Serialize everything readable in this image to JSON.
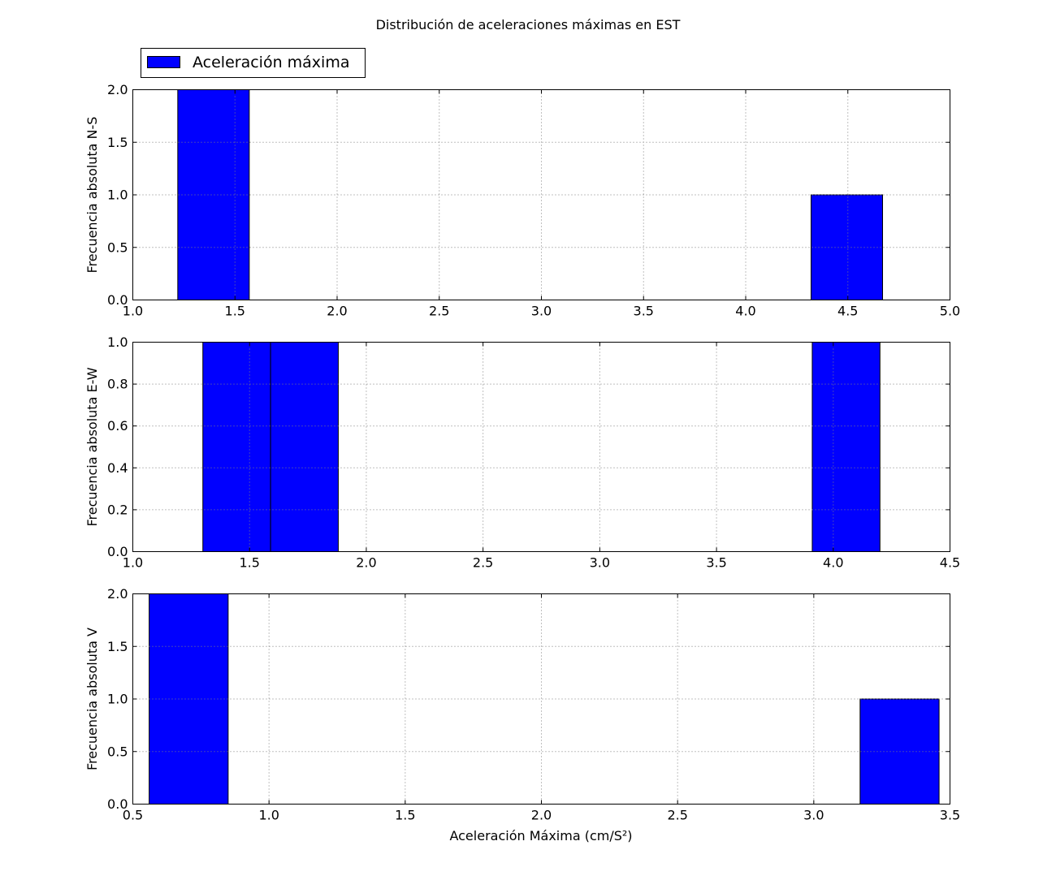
{
  "chart_data": {
    "type": "bar",
    "title": "Distribución de aceleraciones máximas en EST",
    "xlabel": "Aceleración Máxima (cm/S²)",
    "legend": {
      "label": "Aceleración máxima",
      "placement": "upper-left-outside"
    },
    "colors": {
      "bar": "#0000ff",
      "edge": "#000000",
      "grid": "#808080"
    },
    "grid": true,
    "panels": [
      {
        "ylabel": "Frecuencia absoluta N-S",
        "xlim": [
          1.0,
          5.0
        ],
        "ylim": [
          0.0,
          2.0
        ],
        "xticks": [
          "1.0",
          "1.5",
          "2.0",
          "2.5",
          "3.0",
          "3.5",
          "4.0",
          "4.5",
          "5.0"
        ],
        "yticks": [
          "0.0",
          "0.5",
          "1.0",
          "1.5",
          "2.0"
        ],
        "bars": [
          {
            "x0": 1.22,
            "x1": 1.57,
            "value": 2
          },
          {
            "x0": 4.32,
            "x1": 4.67,
            "value": 1
          }
        ]
      },
      {
        "ylabel": "Frecuencia absoluta E-W",
        "xlim": [
          1.0,
          4.5
        ],
        "ylim": [
          0.0,
          1.0
        ],
        "xticks": [
          "1.0",
          "1.5",
          "2.0",
          "2.5",
          "3.0",
          "3.5",
          "4.0",
          "4.5"
        ],
        "yticks": [
          "0.0",
          "0.2",
          "0.4",
          "0.6",
          "0.8",
          "1.0"
        ],
        "bars": [
          {
            "x0": 1.3,
            "x1": 1.59,
            "value": 1
          },
          {
            "x0": 1.59,
            "x1": 1.88,
            "value": 1
          },
          {
            "x0": 3.91,
            "x1": 4.2,
            "value": 1
          }
        ]
      },
      {
        "ylabel": "Frecuencia absoluta V",
        "xlim": [
          0.5,
          3.5
        ],
        "ylim": [
          0.0,
          2.0
        ],
        "xticks": [
          "0.5",
          "1.0",
          "1.5",
          "2.0",
          "2.5",
          "3.0",
          "3.5"
        ],
        "yticks": [
          "0.0",
          "0.5",
          "1.0",
          "1.5",
          "2.0"
        ],
        "bars": [
          {
            "x0": 0.56,
            "x1": 0.85,
            "value": 2
          },
          {
            "x0": 3.17,
            "x1": 3.46,
            "value": 1
          }
        ]
      }
    ]
  }
}
